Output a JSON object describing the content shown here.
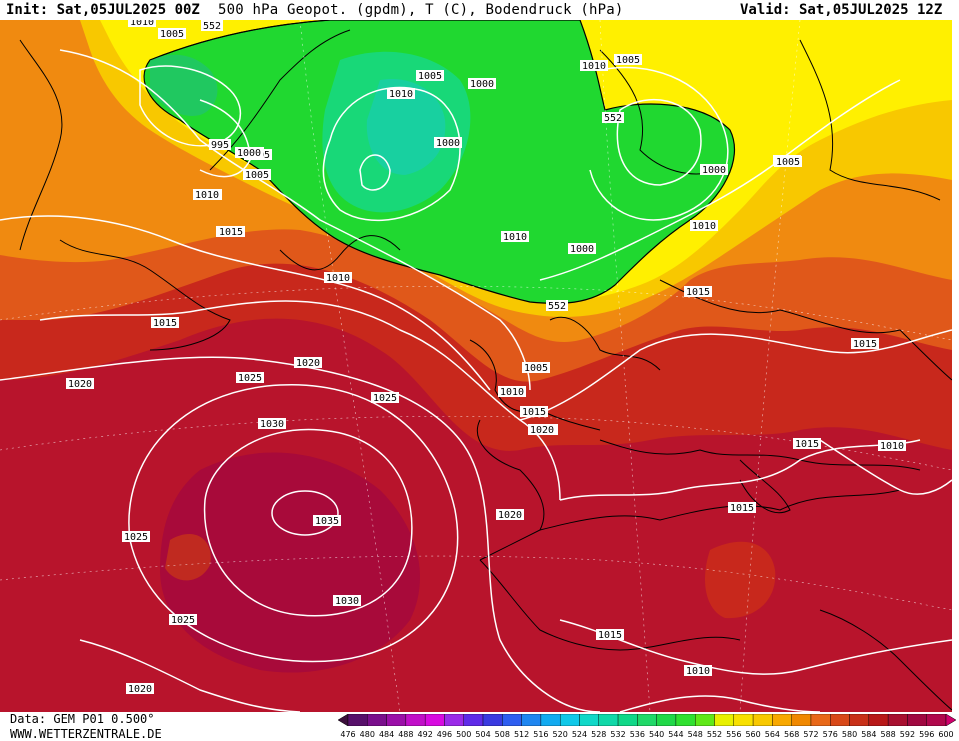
{
  "header": {
    "init": "Init: Sat,05JUL2025 00Z",
    "title": "500 hPa Geopot. (gpdm), T (C), Bodendruck (hPa)",
    "valid": "Valid: Sat,05JUL2025 12Z"
  },
  "footer": {
    "data": "Data: GEM P01 0.500°",
    "site": "WWW.WETTERZENTRALE.DE"
  },
  "colorbar": {
    "levels": [
      "476",
      "480",
      "484",
      "488",
      "492",
      "496",
      "500",
      "504",
      "508",
      "512",
      "516",
      "520",
      "524",
      "528",
      "532",
      "536",
      "540",
      "544",
      "548",
      "552",
      "556",
      "560",
      "564",
      "568",
      "572",
      "576",
      "580",
      "584",
      "588",
      "592",
      "596",
      "600"
    ],
    "colors": [
      "#3b0f3b",
      "#57106a",
      "#7a0f8c",
      "#9b0fa8",
      "#c10fc8",
      "#d80ae0",
      "#9a2be8",
      "#5f2be8",
      "#3a3ae0",
      "#2e5ef0",
      "#1f86f0",
      "#12aaf0",
      "#10c8e8",
      "#10d8c8",
      "#10d8a8",
      "#10d888",
      "#20d868",
      "#20d848",
      "#30e030",
      "#60e818",
      "#e8f000",
      "#f8e000",
      "#f8c800",
      "#f8a800",
      "#f08800",
      "#e86818",
      "#d84818",
      "#c83018",
      "#b81818",
      "#a81030",
      "#a00840",
      "#b0084c",
      "#d0006c"
    ]
  },
  "map": {
    "isobar_labels": [
      "1010",
      "1005",
      "995",
      "1000",
      "1005",
      "1010",
      "1015",
      "1010",
      "1015",
      "1020",
      "1020",
      "1025",
      "1030",
      "1035",
      "1025",
      "1030",
      "1025",
      "1020",
      "1020",
      "1015",
      "1010",
      "1005",
      "1015",
      "1020",
      "1010",
      "1005",
      "1000",
      "1000",
      "1005",
      "1010",
      "1000",
      "1005",
      "1010",
      "1005",
      "1000",
      "1010",
      "1015",
      "1015",
      "1015",
      "1010",
      "1015",
      "1020",
      "1025",
      "1010",
      "995",
      "1000",
      "1005",
      "1010",
      "1015"
    ],
    "geopot_labels": [
      "552",
      "552",
      "552"
    ],
    "colors": {
      "green": "#1fd829",
      "yellow": "#ffee00",
      "orange": "#f39000",
      "red": "#c8151e",
      "darkred": "#b0002e",
      "magenta": "#b5003e"
    }
  }
}
